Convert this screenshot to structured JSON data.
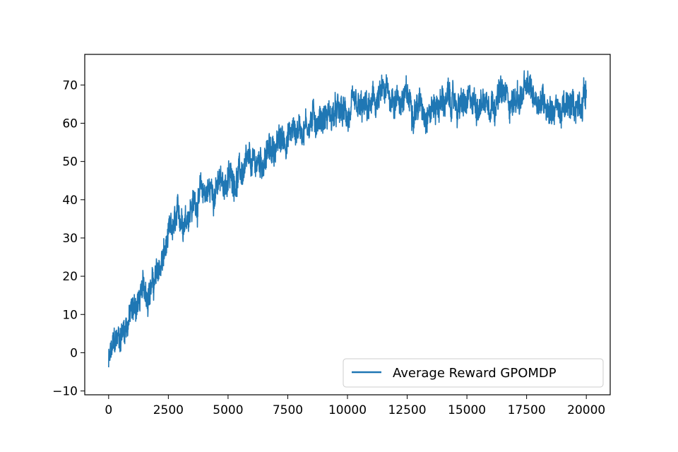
{
  "chart_data": {
    "type": "line",
    "title": "",
    "xlabel": "",
    "ylabel": "",
    "xlim": [
      -1000,
      21000
    ],
    "ylim": [
      -11,
      78
    ],
    "xticks": [
      0,
      2500,
      5000,
      7500,
      10000,
      12500,
      15000,
      17500,
      20000
    ],
    "yticks": [
      -10,
      0,
      10,
      20,
      30,
      40,
      50,
      60,
      70
    ],
    "xtick_labels": [
      "0",
      "2500",
      "5000",
      "7500",
      "10000",
      "12500",
      "15000",
      "17500",
      "20000"
    ],
    "ytick_labels": [
      "−10",
      "0",
      "10",
      "20",
      "30",
      "40",
      "50",
      "60",
      "70"
    ],
    "grid": false,
    "legend_position": "lower-right",
    "series": [
      {
        "name": "Average Reward GPOMDP",
        "color": "#1f77b4",
        "noise_amplitude": 2.8,
        "x": [
          0,
          200,
          500,
          1000,
          1500,
          2000,
          2500,
          3000,
          3500,
          4000,
          4500,
          5000,
          5500,
          6000,
          6500,
          7000,
          7500,
          8000,
          8500,
          9000,
          9500,
          10000,
          10500,
          11000,
          11500,
          12000,
          12500,
          13000,
          13500,
          14000,
          14500,
          15000,
          15500,
          16000,
          16500,
          17000,
          17500,
          18000,
          18500,
          19000,
          19500,
          20000
        ],
        "y": [
          -3,
          1,
          5,
          11,
          16,
          19,
          29,
          35,
          39,
          42,
          43,
          45,
          47,
          48,
          51,
          54,
          57,
          59,
          61,
          62,
          62,
          62,
          62,
          64,
          67,
          67,
          66,
          65,
          64,
          66,
          65,
          64,
          66,
          67,
          67,
          66,
          68,
          67,
          65,
          63,
          64,
          69
        ]
      }
    ]
  }
}
